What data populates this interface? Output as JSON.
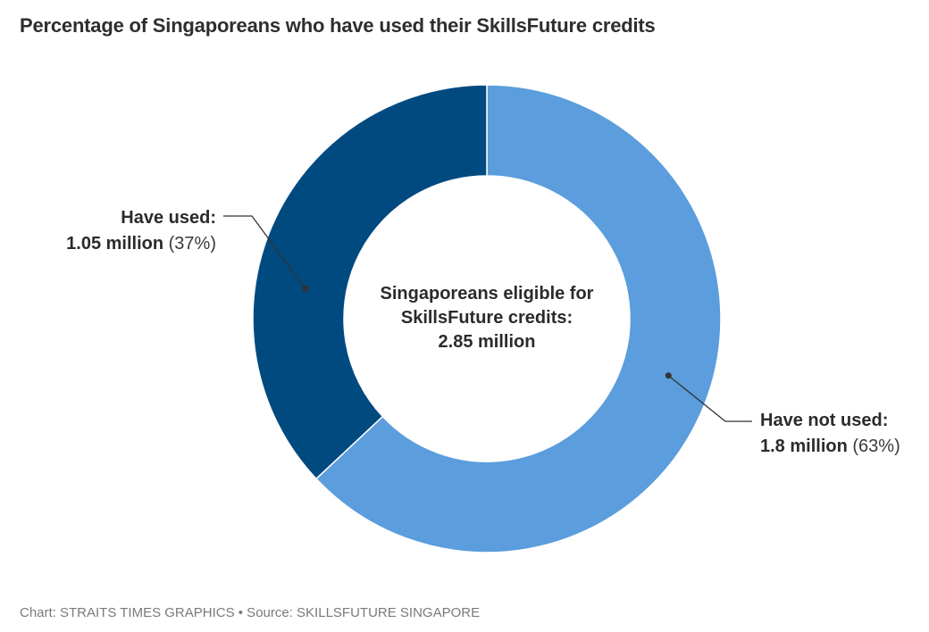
{
  "title": "Percentage of Singaporeans who have used their SkillsFuture credits",
  "center": {
    "line1": "Singaporeans eligible for",
    "line2": "SkillsFuture credits:",
    "line3": "2.85 million"
  },
  "footer": "Chart: STRAITS TIMES GRAPHICS • Source: SKILLSFUTURE SINGAPORE",
  "colors": {
    "used": "#004a80",
    "not_used": "#5b9ddd",
    "leader": "#333333"
  },
  "chart_data": {
    "type": "pie",
    "variant": "donut",
    "title": "Percentage of Singaporeans who have used their SkillsFuture credits",
    "total_label": "2.85 million",
    "slices": [
      {
        "name": "Have not used:",
        "value_label": "1.8 million",
        "value": 1.8,
        "percent": 63,
        "percent_label": "(63%)"
      },
      {
        "name": "Have used:",
        "value_label": "1.05 million",
        "value": 1.05,
        "percent": 37,
        "percent_label": "(37%)"
      }
    ],
    "start_angle_deg": 0,
    "direction": "clockwise"
  }
}
